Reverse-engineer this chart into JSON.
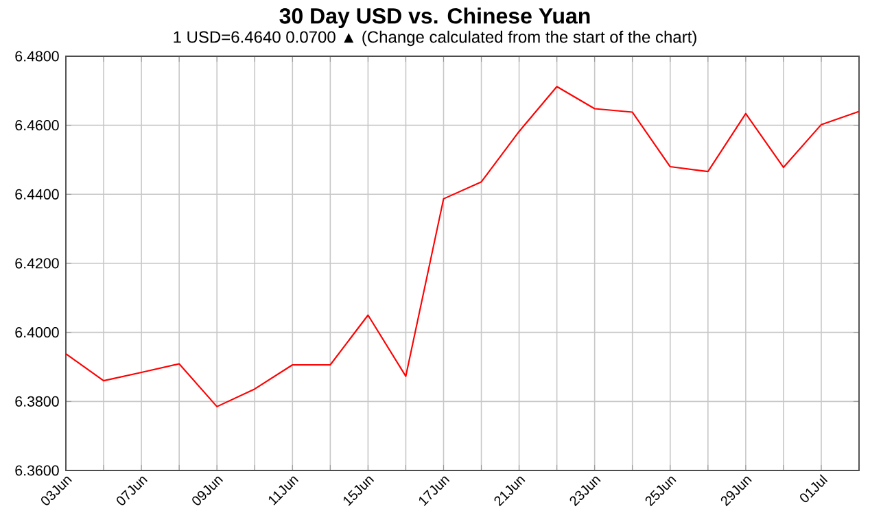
{
  "chart_data": {
    "type": "line",
    "title": "30 Day USD vs. Chinese Yuan",
    "subtitle": "1 USD=6.4640  0.0700 ▲ (Change calculated from the start of the chart)",
    "categories": [
      "03Jun",
      null,
      "07Jun",
      null,
      "09Jun",
      null,
      "11Jun",
      null,
      "15Jun",
      null,
      "17Jun",
      null,
      "21Jun",
      null,
      "23Jun",
      null,
      "25Jun",
      null,
      "29Jun",
      null,
      "01Jul",
      null
    ],
    "series": [
      {
        "color": "#ff0000",
        "values": [
          6.3938,
          6.386,
          6.3884,
          6.3909,
          6.3785,
          6.3836,
          6.3906,
          6.3906,
          6.405,
          6.3873,
          6.4387,
          6.4436,
          6.4582,
          6.4712,
          6.4648,
          6.4638,
          6.448,
          6.4466,
          6.4634,
          6.4478,
          6.4602,
          6.464
        ]
      }
    ],
    "ylim": [
      6.36,
      6.48
    ],
    "yticks": [
      {
        "value": 6.36,
        "label": "6.3600"
      },
      {
        "value": 6.38,
        "label": "6.3800"
      },
      {
        "value": 6.4,
        "label": "6.4000"
      },
      {
        "value": 6.42,
        "label": "6.4200"
      },
      {
        "value": 6.44,
        "label": "6.4400"
      },
      {
        "value": 6.46,
        "label": "6.4600"
      },
      {
        "value": 6.48,
        "label": "6.4800"
      }
    ],
    "grid": true,
    "marker": "none",
    "line_style": "solid"
  }
}
